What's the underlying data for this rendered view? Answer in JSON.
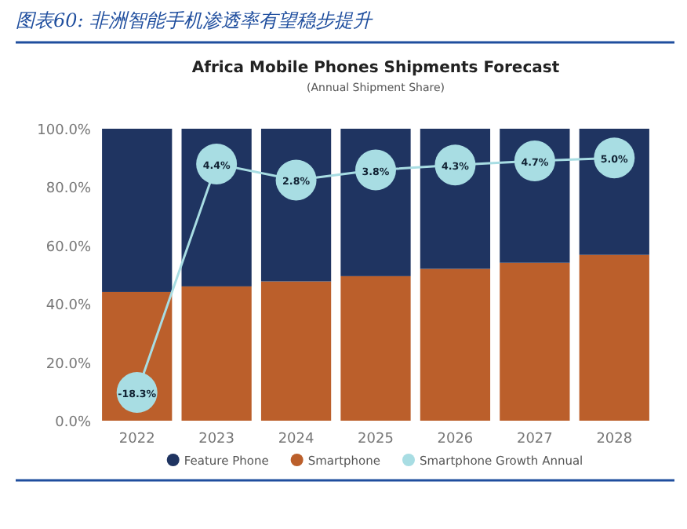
{
  "chart_data": {
    "type": "bar",
    "stacked": true,
    "title": "Africa Mobile Phones Shipments Forecast",
    "subtitle": "(Annual Shipment Share)",
    "annotations": [
      "图表60: 非洲智能手机渗透率有望稳步提升"
    ],
    "categories": [
      "2022",
      "2023",
      "2024",
      "2025",
      "2026",
      "2027",
      "2028"
    ],
    "series": [
      {
        "name": "Smartphone",
        "color": "#bb5f2b",
        "values": [
          44.1,
          46.0,
          47.7,
          49.5,
          52.0,
          54.1,
          56.8
        ]
      },
      {
        "name": "Feature Phone",
        "color": "#1f3461",
        "values": [
          55.9,
          54.0,
          52.3,
          50.5,
          48.0,
          45.9,
          43.2
        ]
      },
      {
        "name": "Smartphone Growth Annual",
        "type": "line",
        "axis": "y2",
        "marker": "circle",
        "color": "#a8dde3",
        "values": [
          -18.3,
          4.4,
          2.8,
          3.8,
          4.3,
          4.7,
          5.0
        ],
        "value_labels": [
          "-18.3%",
          "4.4%",
          "2.8%",
          "3.8%",
          "4.3%",
          "4.7%",
          "5.0%"
        ]
      }
    ],
    "ylim": [
      0,
      100
    ],
    "yticks": [
      {
        "value": 0,
        "label": "0.0%"
      },
      {
        "value": 20,
        "label": "20.0%"
      },
      {
        "value": 40,
        "label": "40.0%"
      },
      {
        "value": 60,
        "label": "60.0%"
      },
      {
        "value": 80,
        "label": "80.0%"
      },
      {
        "value": 100,
        "label": "100.0%"
      }
    ],
    "y2lim": [
      -21.1,
      7.9
    ],
    "legend": "bottom"
  }
}
